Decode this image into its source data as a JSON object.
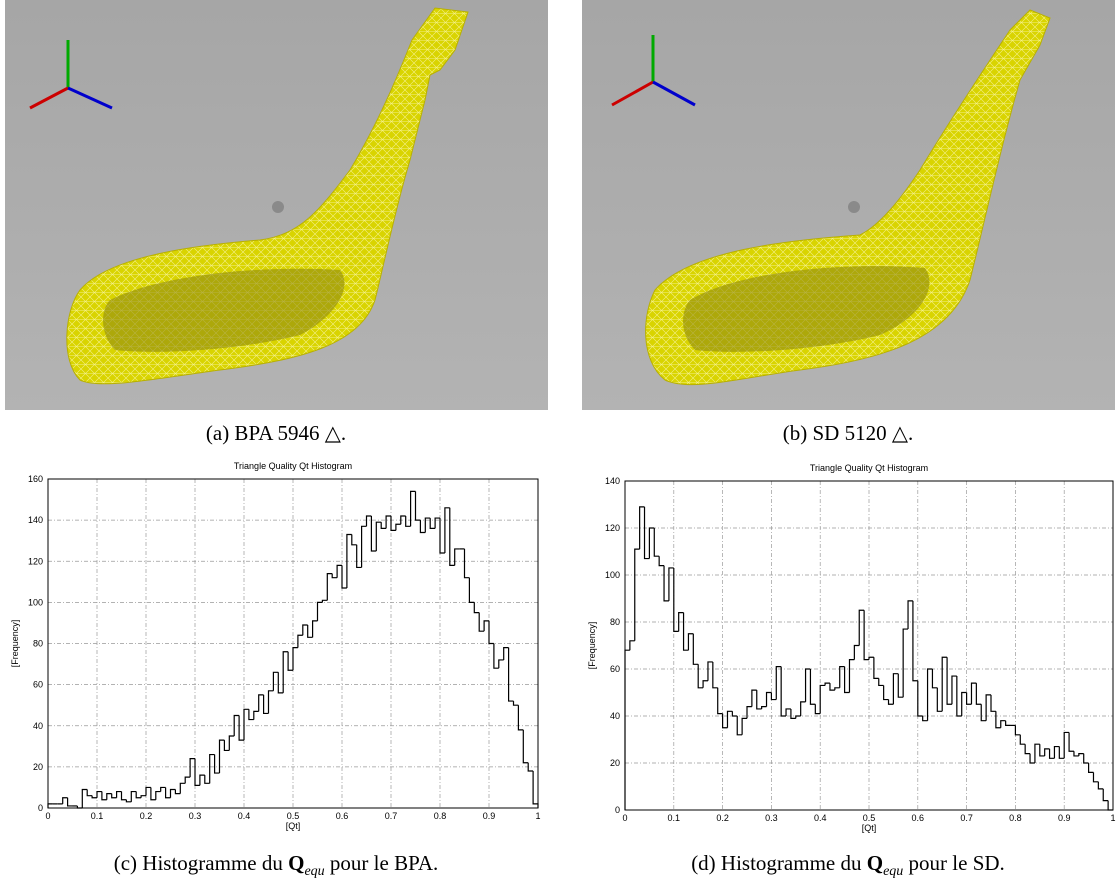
{
  "captions": {
    "a": "(a) BPA 5946 △.",
    "b": "(b) SD 5120 △.",
    "c": {
      "lead": "(c) Histogramme du ",
      "symbol": "Q",
      "subscript": "equ",
      "tail": " pour le BPA."
    },
    "d": {
      "lead": "(d) Histogramme du ",
      "symbol": "Q",
      "subscript": "equ",
      "tail": " pour le SD."
    }
  },
  "chart_data": [
    {
      "type": "histogram",
      "title": "Triangle Quality Qt Histogram",
      "x_label": "[Qt]",
      "y_label": "[Frequency]",
      "color": "#000000",
      "grid": true,
      "bins": [
        0,
        0.01,
        0.02,
        0.03,
        0.04,
        0.05,
        0.06,
        0.07,
        0.08,
        0.09,
        0.1,
        0.11,
        0.12,
        0.13,
        0.14,
        0.15,
        0.16,
        0.17,
        0.18,
        0.19,
        0.2,
        0.21,
        0.22,
        0.23,
        0.24,
        0.25,
        0.26,
        0.27,
        0.28,
        0.29,
        0.3,
        0.31,
        0.32,
        0.33,
        0.34,
        0.35,
        0.36,
        0.37,
        0.38,
        0.39,
        0.4,
        0.41,
        0.42,
        0.43,
        0.44,
        0.45,
        0.46,
        0.47,
        0.48,
        0.49,
        0.5,
        0.51,
        0.52,
        0.53,
        0.54,
        0.55,
        0.56,
        0.57,
        0.58,
        0.59,
        0.6,
        0.61,
        0.62,
        0.63,
        0.64,
        0.65,
        0.66,
        0.67,
        0.68,
        0.69,
        0.7,
        0.71,
        0.72,
        0.73,
        0.74,
        0.75,
        0.76,
        0.77,
        0.78,
        0.79,
        0.8,
        0.81,
        0.82,
        0.83,
        0.84,
        0.85,
        0.86,
        0.87,
        0.88,
        0.89,
        0.9,
        0.91,
        0.92,
        0.93,
        0.94,
        0.95,
        0.96,
        0.97,
        0.98,
        0.99,
        1
      ],
      "values": [
        2,
        2,
        2,
        5,
        1,
        1,
        0,
        9,
        6,
        5,
        8,
        4,
        7,
        5,
        8,
        4,
        3,
        8,
        5,
        6,
        10,
        4,
        8,
        10,
        5,
        9,
        7,
        12,
        15,
        24,
        11,
        16,
        12,
        26,
        17,
        33,
        28,
        35,
        45,
        33,
        48,
        43,
        47,
        55,
        46,
        57,
        66,
        56,
        76,
        67,
        78,
        84,
        89,
        83,
        91,
        100,
        101,
        114,
        112,
        118,
        107,
        133,
        128,
        117,
        137,
        142,
        125,
        139,
        136,
        142,
        135,
        138,
        142,
        137,
        154,
        140,
        134,
        141,
        136,
        141,
        124,
        146,
        118,
        126,
        126,
        112,
        100,
        95,
        86,
        91,
        80,
        68,
        72,
        78,
        52,
        50,
        38,
        22,
        18,
        2
      ],
      "xlim": [
        0,
        1
      ],
      "ylim": [
        0,
        160
      ],
      "xticks": [
        0,
        0.1,
        0.2,
        0.3,
        0.4,
        0.5,
        0.6,
        0.7,
        0.8,
        0.9,
        1
      ],
      "yticks": [
        0,
        20,
        40,
        60,
        80,
        100,
        120,
        140,
        160
      ]
    },
    {
      "type": "histogram",
      "title": "Triangle Quality Qt Histogram",
      "x_label": "[Qt]",
      "y_label": "[Frequency]",
      "color": "#000000",
      "grid": true,
      "bins": [
        0,
        0.01,
        0.02,
        0.03,
        0.04,
        0.05,
        0.06,
        0.07,
        0.08,
        0.09,
        0.1,
        0.11,
        0.12,
        0.13,
        0.14,
        0.15,
        0.16,
        0.17,
        0.18,
        0.19,
        0.2,
        0.21,
        0.22,
        0.23,
        0.24,
        0.25,
        0.26,
        0.27,
        0.28,
        0.29,
        0.3,
        0.31,
        0.32,
        0.33,
        0.34,
        0.35,
        0.36,
        0.37,
        0.38,
        0.39,
        0.4,
        0.41,
        0.42,
        0.43,
        0.44,
        0.45,
        0.46,
        0.47,
        0.48,
        0.49,
        0.5,
        0.51,
        0.52,
        0.53,
        0.54,
        0.55,
        0.56,
        0.57,
        0.58,
        0.59,
        0.6,
        0.61,
        0.62,
        0.63,
        0.64,
        0.65,
        0.66,
        0.67,
        0.68,
        0.69,
        0.7,
        0.71,
        0.72,
        0.73,
        0.74,
        0.75,
        0.76,
        0.77,
        0.78,
        0.79,
        0.8,
        0.81,
        0.82,
        0.83,
        0.84,
        0.85,
        0.86,
        0.87,
        0.88,
        0.89,
        0.9,
        0.91,
        0.92,
        0.93,
        0.94,
        0.95,
        0.96,
        0.97,
        0.98,
        0.99,
        1
      ],
      "values": [
        68,
        72,
        111,
        129,
        107,
        120,
        108,
        104,
        89,
        103,
        76,
        84,
        68,
        75,
        62,
        52,
        55,
        63,
        52,
        41,
        35,
        42,
        40,
        32,
        39,
        44,
        51,
        43,
        44,
        50,
        47,
        61,
        40,
        43,
        39,
        40,
        46,
        60,
        45,
        41,
        53,
        54,
        51,
        52,
        61,
        50,
        64,
        70,
        85,
        64,
        65,
        56,
        53,
        47,
        45,
        58,
        48,
        77,
        89,
        55,
        40,
        38,
        60,
        52,
        42,
        65,
        45,
        57,
        40,
        50,
        45,
        54,
        45,
        38,
        49,
        42,
        35,
        38,
        36,
        36,
        32,
        28,
        24,
        20,
        28,
        23,
        26,
        22,
        27,
        22,
        33,
        25,
        23,
        24,
        20,
        16,
        12,
        9,
        4,
        0
      ],
      "xlim": [
        0,
        1
      ],
      "ylim": [
        0,
        140
      ],
      "xticks": [
        0,
        0.1,
        0.2,
        0.3,
        0.4,
        0.5,
        0.6,
        0.7,
        0.8,
        0.9,
        1
      ],
      "yticks": [
        0,
        20,
        40,
        60,
        80,
        100,
        120,
        140
      ]
    }
  ]
}
